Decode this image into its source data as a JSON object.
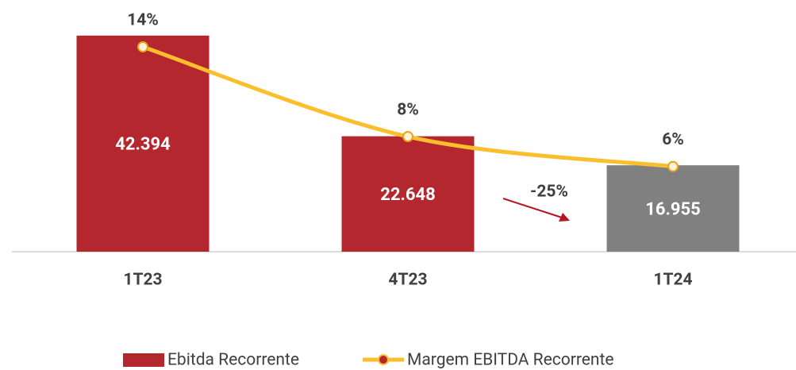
{
  "chart_data": {
    "type": "bar+line",
    "categories": [
      "1T23",
      "4T23",
      "1T24"
    ],
    "series": [
      {
        "name": "Ebitda Recorrente",
        "type": "bar",
        "color": "#b5272f",
        "colors": [
          "#b5272f",
          "#b5272f",
          "#808080"
        ],
        "values": [
          42394,
          22648,
          16955
        ],
        "value_labels": [
          "42.394",
          "22.648",
          "16.955"
        ]
      },
      {
        "name": "Margem EBITDA Recorrente",
        "type": "line",
        "axis": "y2",
        "color": "#fbbf2e",
        "values": [
          14,
          8,
          6
        ],
        "value_labels": [
          "14%",
          "8%",
          "6%"
        ]
      }
    ],
    "ylim": [
      0,
      50000
    ],
    "y2lim": [
      0,
      15
    ],
    "annotations": [
      {
        "text": "-25%"
      }
    ]
  }
}
